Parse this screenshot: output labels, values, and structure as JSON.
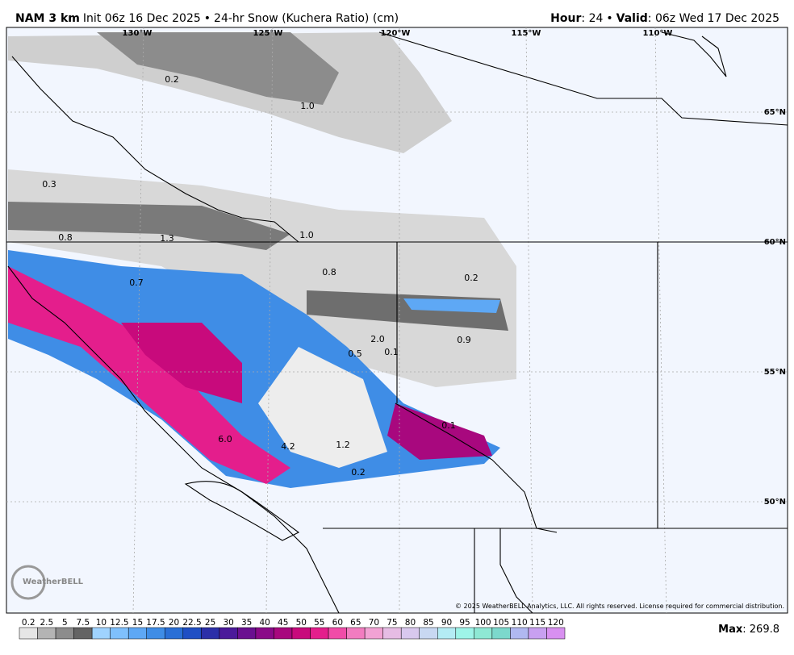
{
  "header": {
    "model": "NAM 3 km",
    "init": "Init 06z 16 Dec 2025",
    "product": "24-hr Snow (Kuchera Ratio) (cm)",
    "hour_label": "Hour",
    "hour": "24",
    "valid_label": "Valid",
    "valid": "06z Wed 17 Dec 2025"
  },
  "map": {
    "lon_labels": [
      "130°W",
      "125°W",
      "120°W",
      "115°W",
      "110°W"
    ],
    "lat_labels": [
      "65°N",
      "60°N",
      "55°N",
      "50°N"
    ],
    "point_labels": [
      "0.2",
      "1.0",
      "0.3",
      "0.8",
      "1.3",
      "1.0",
      "0.7",
      "0.8",
      "0.2",
      "2.0",
      "0.1",
      "0.5",
      "0.9",
      "0.1",
      "6.0",
      "4.2",
      "1.2",
      "0.2"
    ],
    "logo": "WeatherBELL",
    "copyright": "© 2025 WeatherBELL Analytics, LLC. All rights reserved. License required for commercial distribution."
  },
  "colorbar": {
    "labels": [
      0.2,
      2.5,
      5,
      7.5,
      10,
      12.5,
      15,
      17.5,
      20,
      22.5,
      25,
      30,
      35,
      40,
      45,
      50,
      55,
      60,
      65,
      70,
      75,
      80,
      85,
      90,
      95,
      100,
      105,
      110,
      115,
      120
    ],
    "colors": [
      "#e6e6e6",
      "#b4b4b4",
      "#8c8c8c",
      "#646464",
      "#9fd3ff",
      "#7fc0fc",
      "#5ea8f5",
      "#3f8de6",
      "#2a6fd6",
      "#1f4fc4",
      "#2c2fa8",
      "#4b1a9a",
      "#6a1090",
      "#8a0a88",
      "#a8087e",
      "#c80a7c",
      "#e41e8c",
      "#f04ca8",
      "#f27cc0",
      "#f2a2d4",
      "#e6bce4",
      "#d8c8ee",
      "#c8d8f2",
      "#b4ecf4",
      "#9ef4e8",
      "#8ee8d4",
      "#7cd8cc",
      "#b0b8f0",
      "#c8a0f0",
      "#d890f0"
    ],
    "max_label": "Max",
    "max": 269.8
  }
}
